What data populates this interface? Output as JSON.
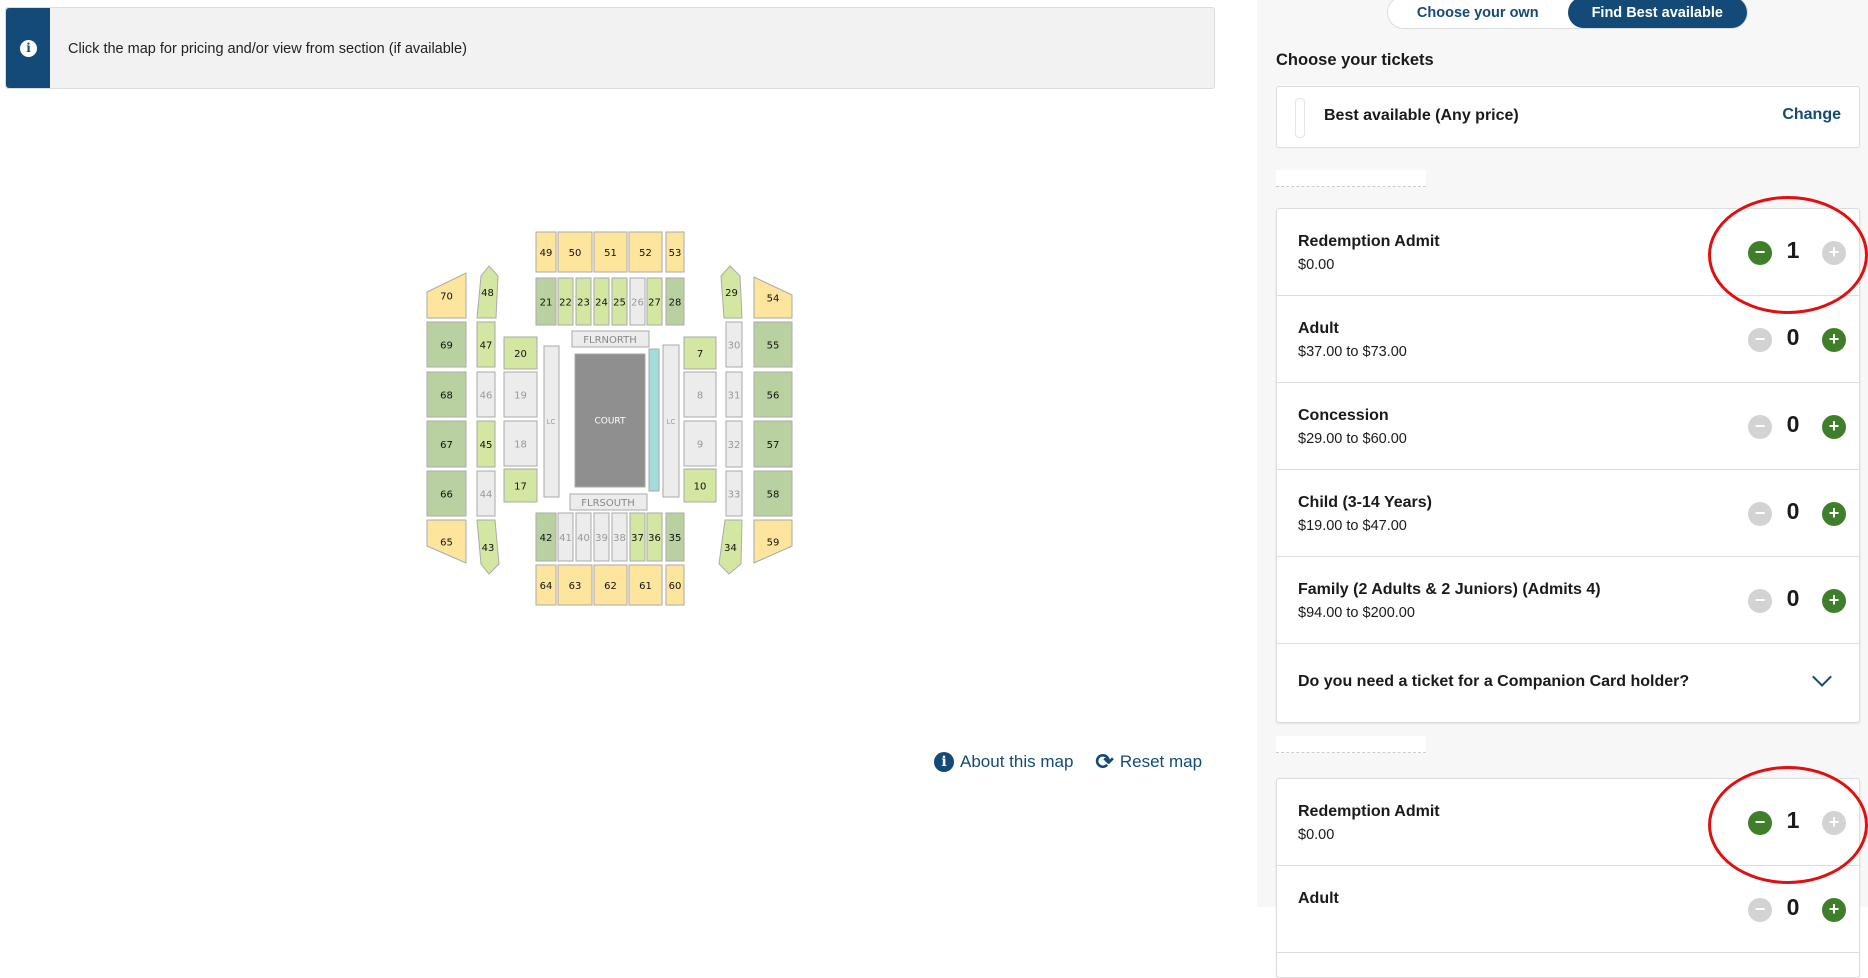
{
  "info": {
    "icon": "info-icon",
    "text": "Click the map for pricing and/or view from section (if available)"
  },
  "map": {
    "court_label": "COURT",
    "north_label": "FLRNORTH",
    "south_label": "FLRSOUTH",
    "lc_label": "LC",
    "about_label": "About this map",
    "reset_label": "Reset map",
    "tier_colors": {
      "yellow": "#fde59e",
      "light": "#d3e7a3",
      "dark": "#b9d1a0",
      "grey": "#ececec",
      "court": "#8f8f8f",
      "teal": "#a3dcdc"
    },
    "sections": [
      {
        "id": "49",
        "tier": "yellow"
      },
      {
        "id": "50",
        "tier": "yellow"
      },
      {
        "id": "51",
        "tier": "yellow"
      },
      {
        "id": "52",
        "tier": "yellow"
      },
      {
        "id": "53",
        "tier": "yellow"
      },
      {
        "id": "21",
        "tier": "dark"
      },
      {
        "id": "22",
        "tier": "light"
      },
      {
        "id": "23",
        "tier": "light"
      },
      {
        "id": "24",
        "tier": "light"
      },
      {
        "id": "25",
        "tier": "light"
      },
      {
        "id": "26",
        "tier": "grey"
      },
      {
        "id": "27",
        "tier": "light"
      },
      {
        "id": "28",
        "tier": "dark"
      },
      {
        "id": "70",
        "tier": "yellow"
      },
      {
        "id": "69",
        "tier": "dark"
      },
      {
        "id": "68",
        "tier": "dark"
      },
      {
        "id": "67",
        "tier": "dark"
      },
      {
        "id": "66",
        "tier": "dark"
      },
      {
        "id": "65",
        "tier": "yellow"
      },
      {
        "id": "48",
        "tier": "light"
      },
      {
        "id": "47",
        "tier": "light"
      },
      {
        "id": "46",
        "tier": "grey"
      },
      {
        "id": "45",
        "tier": "light"
      },
      {
        "id": "44",
        "tier": "grey"
      },
      {
        "id": "43",
        "tier": "light"
      },
      {
        "id": "20",
        "tier": "light"
      },
      {
        "id": "19",
        "tier": "grey"
      },
      {
        "id": "18",
        "tier": "grey"
      },
      {
        "id": "17",
        "tier": "light"
      },
      {
        "id": "7",
        "tier": "light"
      },
      {
        "id": "8",
        "tier": "grey"
      },
      {
        "id": "9",
        "tier": "grey"
      },
      {
        "id": "10",
        "tier": "light"
      },
      {
        "id": "29",
        "tier": "light"
      },
      {
        "id": "30",
        "tier": "grey"
      },
      {
        "id": "31",
        "tier": "grey"
      },
      {
        "id": "32",
        "tier": "grey"
      },
      {
        "id": "33",
        "tier": "grey"
      },
      {
        "id": "34",
        "tier": "light"
      },
      {
        "id": "54",
        "tier": "yellow"
      },
      {
        "id": "55",
        "tier": "dark"
      },
      {
        "id": "56",
        "tier": "dark"
      },
      {
        "id": "57",
        "tier": "dark"
      },
      {
        "id": "58",
        "tier": "dark"
      },
      {
        "id": "59",
        "tier": "yellow"
      },
      {
        "id": "42",
        "tier": "dark"
      },
      {
        "id": "41",
        "tier": "grey"
      },
      {
        "id": "40",
        "tier": "grey"
      },
      {
        "id": "39",
        "tier": "grey"
      },
      {
        "id": "38",
        "tier": "grey"
      },
      {
        "id": "37",
        "tier": "light"
      },
      {
        "id": "36",
        "tier": "light"
      },
      {
        "id": "35",
        "tier": "dark"
      },
      {
        "id": "64",
        "tier": "yellow"
      },
      {
        "id": "63",
        "tier": "yellow"
      },
      {
        "id": "62",
        "tier": "yellow"
      },
      {
        "id": "61",
        "tier": "yellow"
      },
      {
        "id": "60",
        "tier": "yellow"
      }
    ]
  },
  "toggle": {
    "choose_own": "Choose your own",
    "find_best": "Find Best available",
    "selected": "find_best"
  },
  "tickets": {
    "heading": "Choose your tickets",
    "selection": {
      "label": "Best available (Any price)",
      "change_label": "Change"
    },
    "accent": "#144a77",
    "groups": [
      {
        "items": [
          {
            "name": "Redemption Admit",
            "price": "$0.00",
            "qty": "1",
            "minus_enabled": true,
            "plus_enabled": false
          },
          {
            "name": "Adult",
            "price": "$37.00 to $73.00",
            "qty": "0",
            "minus_enabled": false,
            "plus_enabled": true
          },
          {
            "name": "Concession",
            "price": "$29.00 to $60.00",
            "qty": "0",
            "minus_enabled": false,
            "plus_enabled": true
          },
          {
            "name": "Child (3-14 Years)",
            "price": "$19.00 to $47.00",
            "qty": "0",
            "minus_enabled": false,
            "plus_enabled": true
          },
          {
            "name": "Family (2 Adults & 2 Juniors) (Admits 4)",
            "price": "$94.00 to $200.00",
            "qty": "0",
            "minus_enabled": false,
            "plus_enabled": true
          }
        ],
        "companion_question": "Do you need a ticket for a Companion Card holder?"
      },
      {
        "items": [
          {
            "name": "Redemption Admit",
            "price": "$0.00",
            "qty": "1",
            "minus_enabled": true,
            "plus_enabled": false
          },
          {
            "name": "Adult",
            "qty": "0",
            "minus_enabled": false,
            "plus_enabled": true
          }
        ]
      }
    ]
  }
}
